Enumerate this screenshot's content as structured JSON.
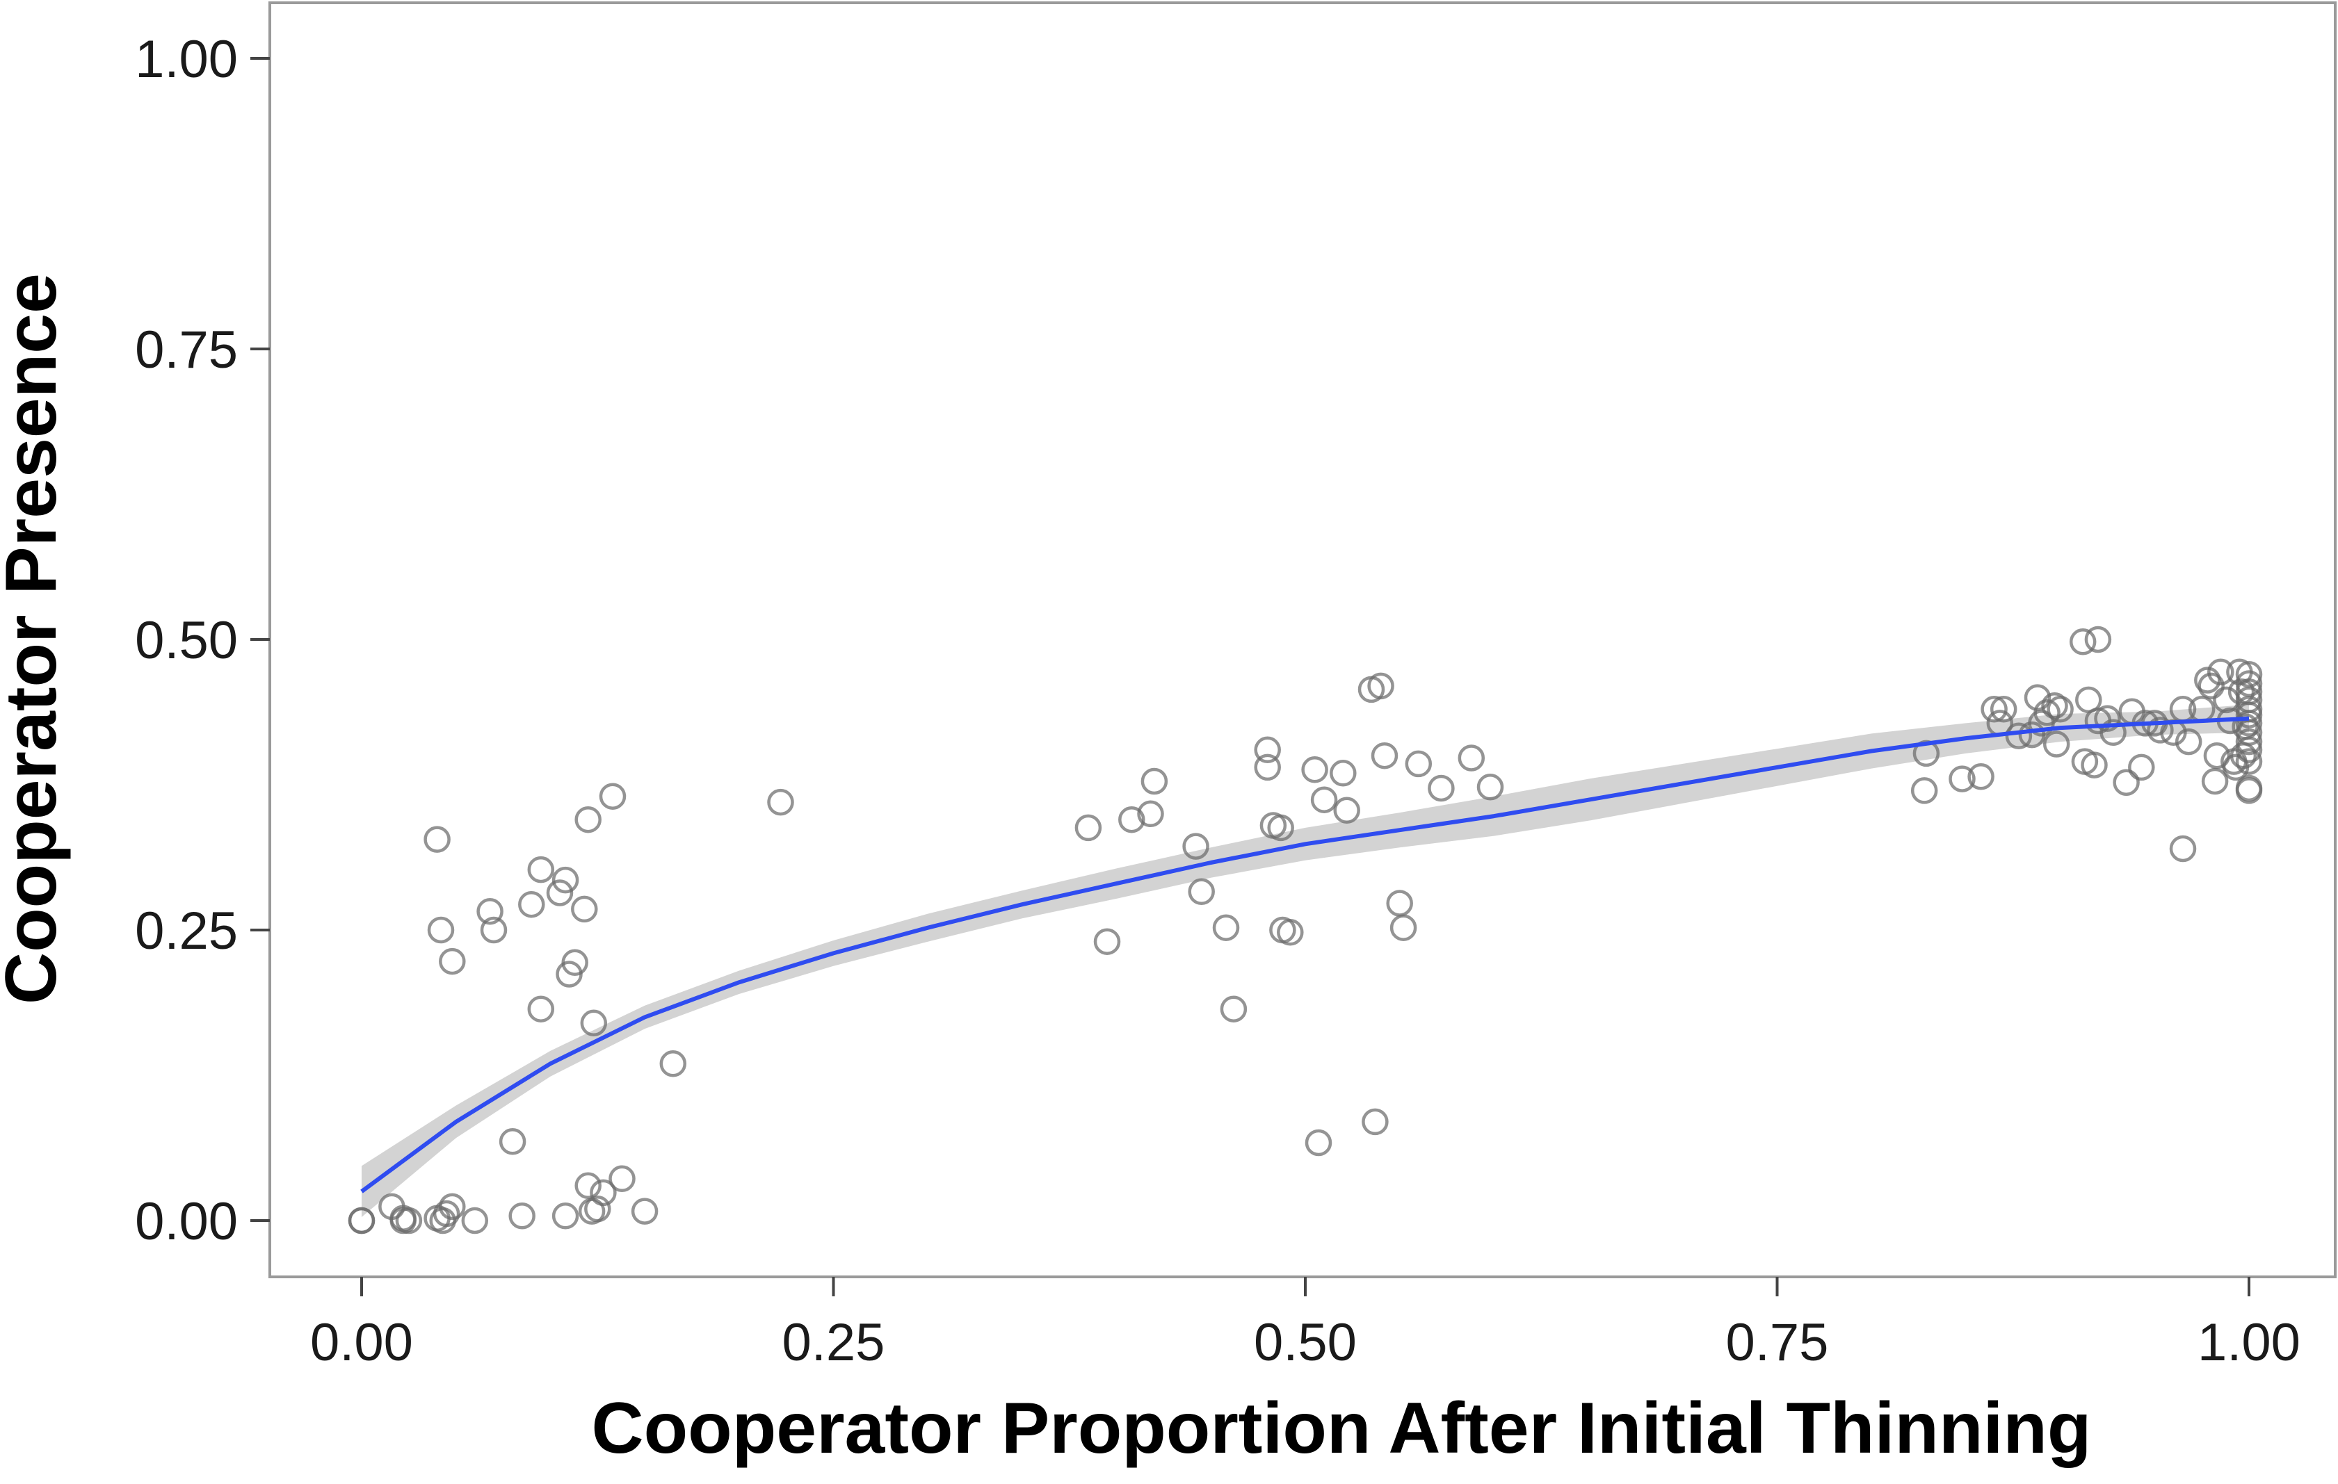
{
  "chart_data": {
    "type": "scatter",
    "title": "",
    "xlabel": "Cooperator Proportion After Initial Thinning",
    "ylabel": "Cooperator Presence",
    "xlim": [
      -0.1,
      1.04
    ],
    "ylim": [
      -0.05,
      1.05
    ],
    "x_ticks": [
      {
        "value": 0,
        "label": "0.00"
      },
      {
        "value": 0.25,
        "label": "0.25"
      },
      {
        "value": 0.5,
        "label": "0.50"
      },
      {
        "value": 0.75,
        "label": "0.75"
      },
      {
        "value": 1,
        "label": "1.00"
      }
    ],
    "y_ticks": [
      {
        "value": 0,
        "label": "0.00"
      },
      {
        "value": 0.25,
        "label": "0.25"
      },
      {
        "value": 0.5,
        "label": "0.50"
      },
      {
        "value": 0.75,
        "label": "0.75"
      },
      {
        "value": 1,
        "label": "1.00"
      }
    ],
    "grid": false,
    "legend": "none",
    "colors": {
      "points": "#6b6b6b",
      "smooth_line": "#2f4cf0",
      "confidence_band": "#d3d3d3",
      "panel_border": "#9a9a9a"
    },
    "series": [
      {
        "kind": "points",
        "points": [
          [
            0.0,
            0.0
          ],
          [
            0.0,
            0.0
          ],
          [
            0.016,
            0.012
          ],
          [
            0.022,
            0.0
          ],
          [
            0.022,
            0.002
          ],
          [
            0.025,
            0.0
          ],
          [
            0.04,
            0.002
          ],
          [
            0.043,
            0.0
          ],
          [
            0.045,
            0.006
          ],
          [
            0.048,
            0.012
          ],
          [
            0.06,
            0.0
          ],
          [
            0.085,
            0.004
          ],
          [
            0.108,
            0.004
          ],
          [
            0.12,
            0.03
          ],
          [
            0.122,
            0.008
          ],
          [
            0.125,
            0.01
          ],
          [
            0.128,
            0.024
          ],
          [
            0.138,
            0.036
          ],
          [
            0.15,
            0.008
          ],
          [
            0.04,
            0.328
          ],
          [
            0.042,
            0.25
          ],
          [
            0.048,
            0.223
          ],
          [
            0.068,
            0.266
          ],
          [
            0.07,
            0.25
          ],
          [
            0.08,
            0.068
          ],
          [
            0.09,
            0.272
          ],
          [
            0.095,
            0.182
          ],
          [
            0.095,
            0.302
          ],
          [
            0.105,
            0.282
          ],
          [
            0.108,
            0.293
          ],
          [
            0.11,
            0.212
          ],
          [
            0.113,
            0.222
          ],
          [
            0.118,
            0.268
          ],
          [
            0.12,
            0.345
          ],
          [
            0.123,
            0.17
          ],
          [
            0.133,
            0.365
          ],
          [
            0.165,
            0.135
          ],
          [
            0.222,
            0.36
          ],
          [
            0.385,
            0.338
          ],
          [
            0.395,
            0.24
          ],
          [
            0.408,
            0.345
          ],
          [
            0.418,
            0.35
          ],
          [
            0.42,
            0.378
          ],
          [
            0.442,
            0.322
          ],
          [
            0.445,
            0.283
          ],
          [
            0.458,
            0.252
          ],
          [
            0.462,
            0.182
          ],
          [
            0.48,
            0.405
          ],
          [
            0.48,
            0.39
          ],
          [
            0.483,
            0.34
          ],
          [
            0.487,
            0.338
          ],
          [
            0.488,
            0.25
          ],
          [
            0.492,
            0.248
          ],
          [
            0.505,
            0.388
          ],
          [
            0.507,
            0.067
          ],
          [
            0.51,
            0.362
          ],
          [
            0.52,
            0.385
          ],
          [
            0.522,
            0.353
          ],
          [
            0.535,
            0.457
          ],
          [
            0.537,
            0.085
          ],
          [
            0.54,
            0.46
          ],
          [
            0.542,
            0.4
          ],
          [
            0.55,
            0.273
          ],
          [
            0.552,
            0.252
          ],
          [
            0.56,
            0.393
          ],
          [
            0.572,
            0.372
          ],
          [
            0.588,
            0.398
          ],
          [
            0.598,
            0.373
          ],
          [
            0.828,
            0.37
          ],
          [
            0.829,
            0.402
          ],
          [
            0.848,
            0.38
          ],
          [
            0.858,
            0.382
          ],
          [
            0.865,
            0.44
          ],
          [
            0.868,
            0.428
          ],
          [
            0.87,
            0.44
          ],
          [
            0.878,
            0.417
          ],
          [
            0.885,
            0.418
          ],
          [
            0.888,
            0.45
          ],
          [
            0.89,
            0.428
          ],
          [
            0.893,
            0.437
          ],
          [
            0.897,
            0.443
          ],
          [
            0.898,
            0.41
          ],
          [
            0.9,
            0.44
          ],
          [
            0.912,
            0.498
          ],
          [
            0.913,
            0.395
          ],
          [
            0.915,
            0.448
          ],
          [
            0.918,
            0.392
          ],
          [
            0.92,
            0.43
          ],
          [
            0.92,
            0.5
          ],
          [
            0.925,
            0.432
          ],
          [
            0.928,
            0.42
          ],
          [
            0.935,
            0.377
          ],
          [
            0.938,
            0.438
          ],
          [
            0.943,
            0.39
          ],
          [
            0.945,
            0.428
          ],
          [
            0.95,
            0.428
          ],
          [
            0.953,
            0.422
          ],
          [
            0.96,
            0.42
          ],
          [
            0.965,
            0.44
          ],
          [
            0.965,
            0.32
          ],
          [
            0.968,
            0.412
          ],
          [
            0.975,
            0.44
          ],
          [
            0.978,
            0.465
          ],
          [
            0.98,
            0.46
          ],
          [
            0.982,
            0.378
          ],
          [
            0.983,
            0.4
          ],
          [
            0.985,
            0.472
          ],
          [
            0.988,
            0.448
          ],
          [
            0.99,
            0.43
          ],
          [
            0.992,
            0.395
          ],
          [
            0.993,
            0.39
          ],
          [
            0.995,
            0.472
          ],
          [
            0.996,
            0.455
          ],
          [
            0.997,
            0.4
          ],
          [
            0.998,
            0.425
          ],
          [
            1.0,
            0.47
          ],
          [
            1.0,
            0.462
          ],
          [
            1.0,
            0.455
          ],
          [
            1.0,
            0.448
          ],
          [
            1.0,
            0.44
          ],
          [
            1.0,
            0.435
          ],
          [
            1.0,
            0.428
          ],
          [
            1.0,
            0.42
          ],
          [
            1.0,
            0.412
          ],
          [
            1.0,
            0.405
          ],
          [
            1.0,
            0.395
          ],
          [
            1.0,
            0.372
          ],
          [
            1.0,
            0.37
          ]
        ]
      },
      {
        "kind": "smooth",
        "x": [
          0.0,
          0.05,
          0.1,
          0.15,
          0.2,
          0.25,
          0.3,
          0.35,
          0.4,
          0.45,
          0.5,
          0.55,
          0.6,
          0.65,
          0.7,
          0.75,
          0.8,
          0.85,
          0.9,
          0.95,
          1.0
        ],
        "y": [
          0.025,
          0.085,
          0.135,
          0.175,
          0.205,
          0.23,
          0.252,
          0.272,
          0.29,
          0.308,
          0.324,
          0.336,
          0.348,
          0.362,
          0.376,
          0.39,
          0.404,
          0.415,
          0.424,
          0.428,
          0.432
        ],
        "band_halfwidth": [
          0.022,
          0.014,
          0.011,
          0.01,
          0.01,
          0.011,
          0.012,
          0.012,
          0.013,
          0.013,
          0.014,
          0.015,
          0.017,
          0.018,
          0.017,
          0.016,
          0.015,
          0.013,
          0.012,
          0.01,
          0.012
        ]
      }
    ]
  }
}
